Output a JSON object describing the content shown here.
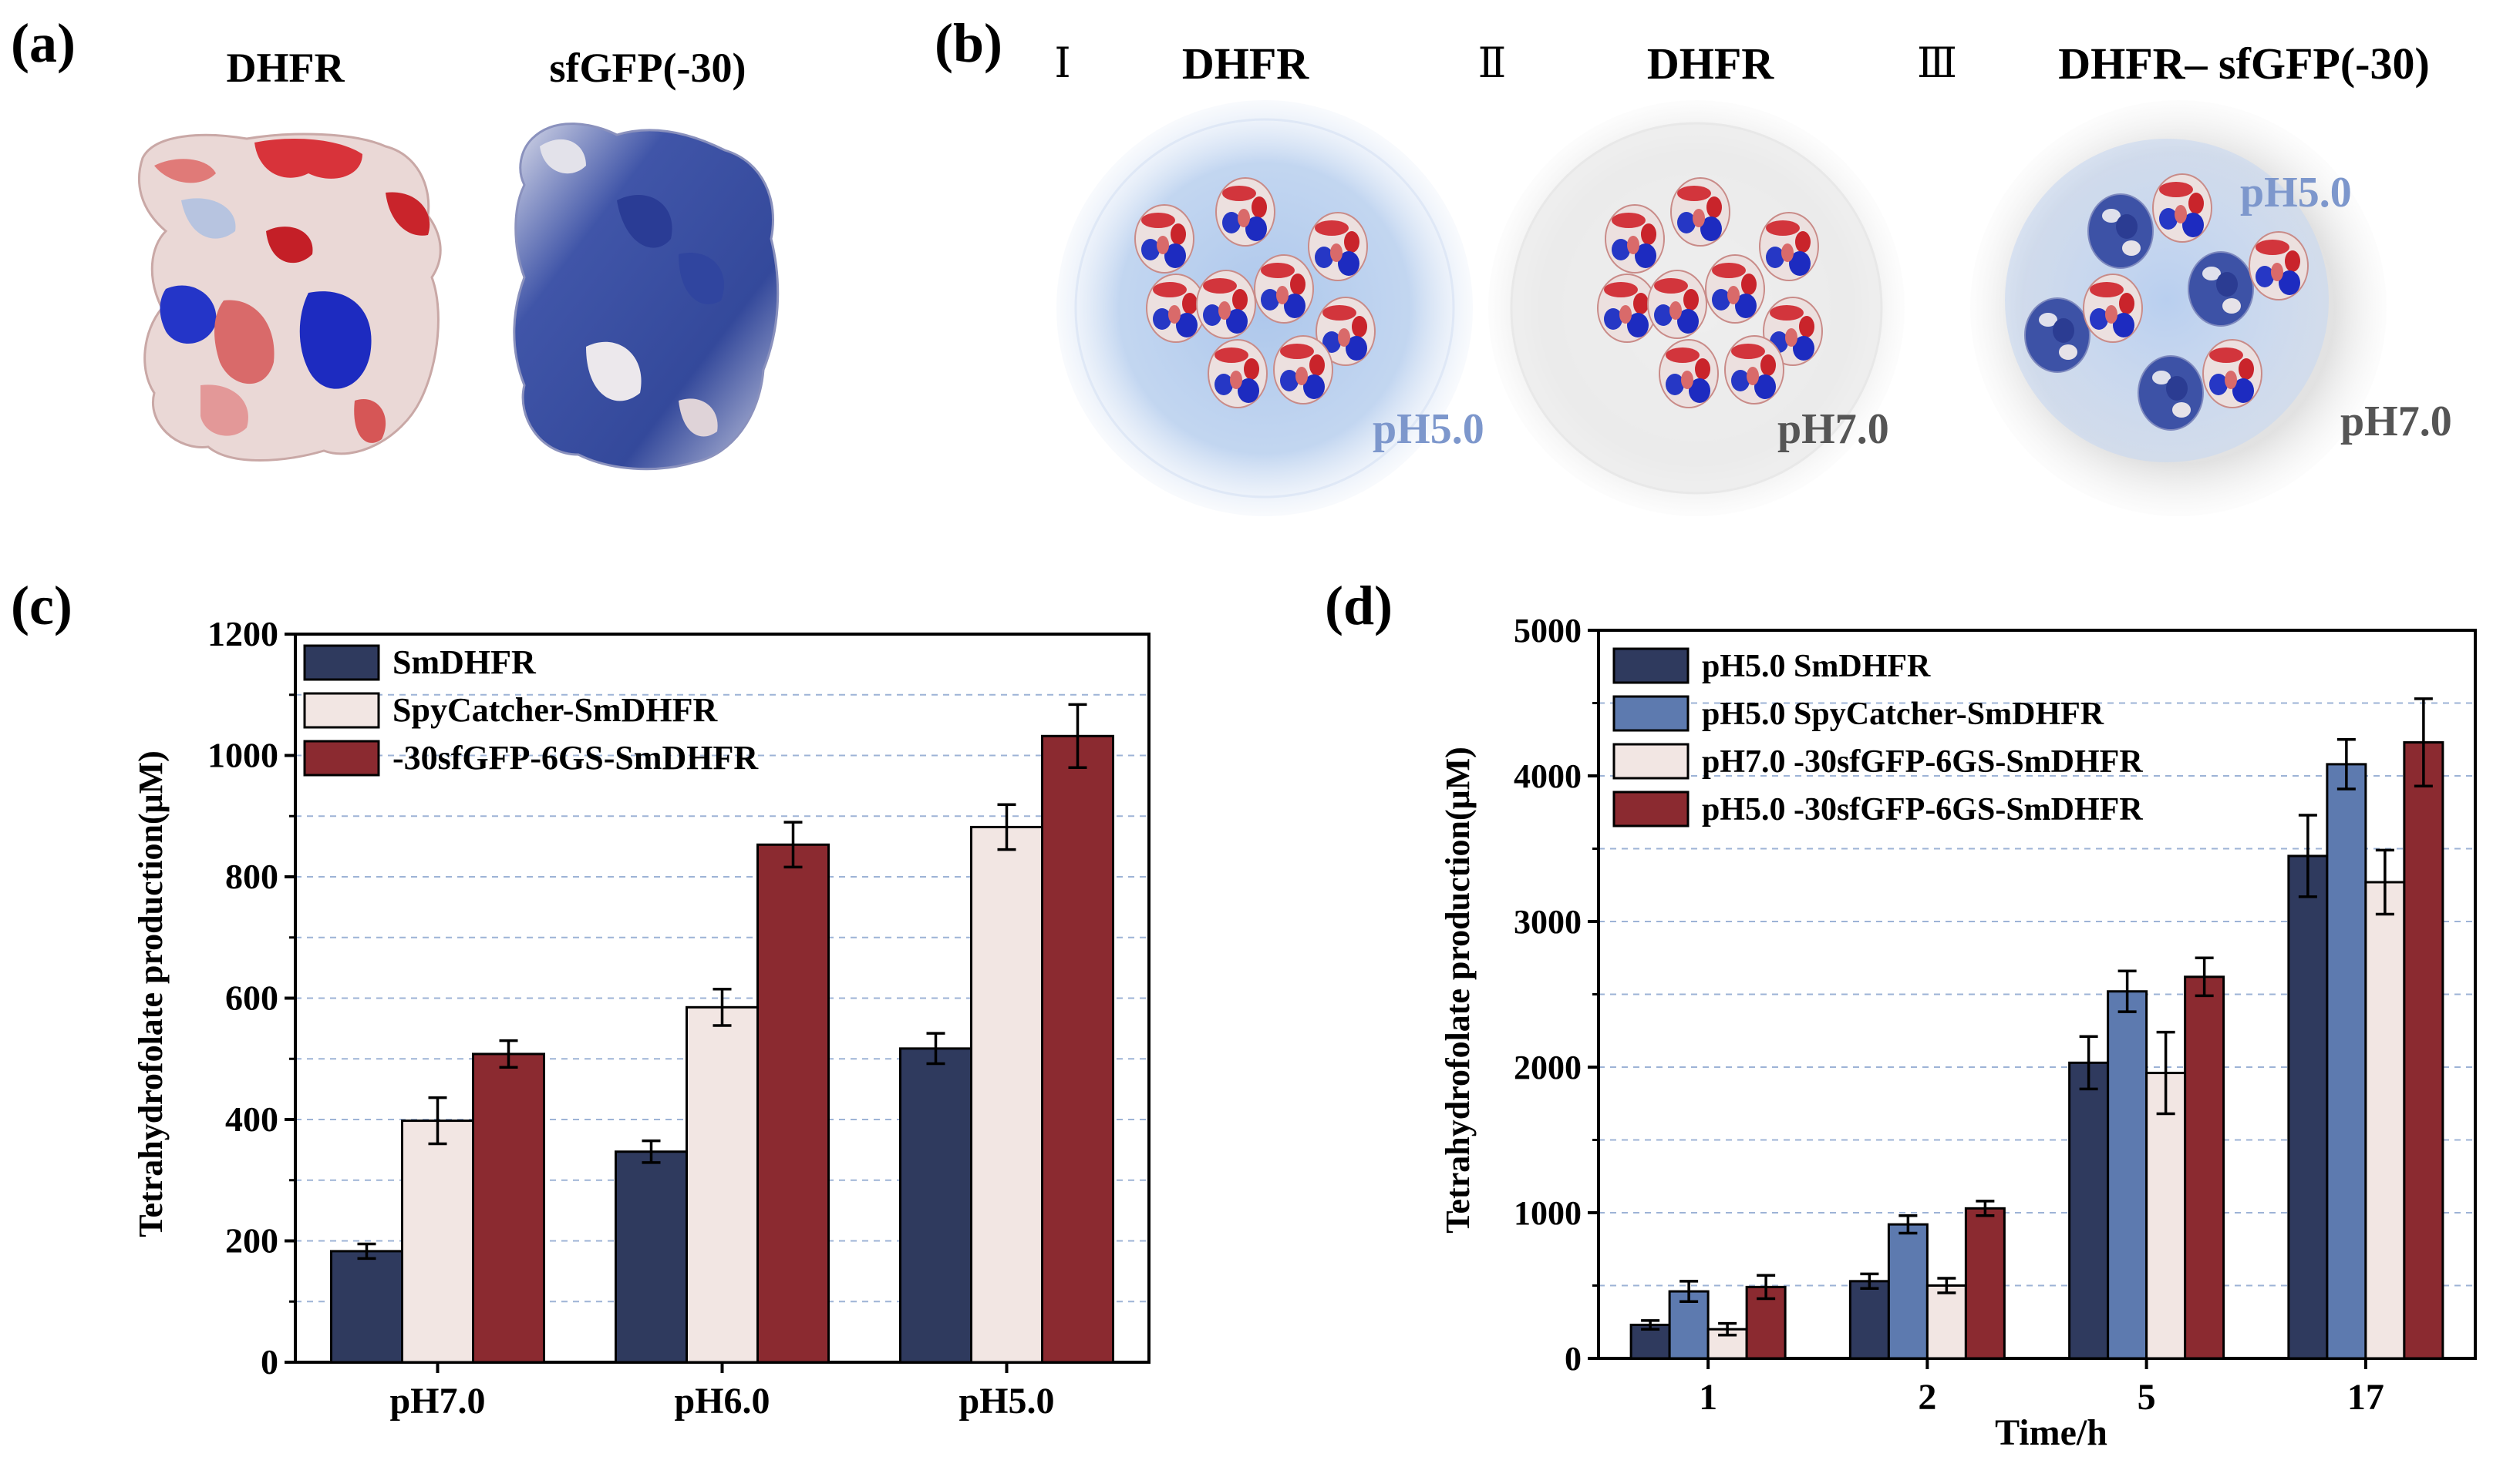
{
  "panel_a": {
    "letter": "(a)",
    "proteins": [
      {
        "label": "DHFR",
        "style": "electrostatic mixed red/white/blue"
      },
      {
        "label": "sfGFP(-30)",
        "style": "electrostatic predominantly blue"
      }
    ]
  },
  "panel_b": {
    "letter": "(b)",
    "groups": [
      {
        "roman": "Ⅰ",
        "title": "DHFR",
        "inner_ph": "pH5.0",
        "outer_ph": "",
        "droplet_color": "#a9c4ea"
      },
      {
        "roman": "Ⅱ",
        "title": "DHFR",
        "inner_ph": "pH7.0",
        "outer_ph": "",
        "droplet_color": "#d9d9d9"
      },
      {
        "roman": "Ⅲ",
        "title": "DHFR– sfGFP(-30)",
        "inner_ph": "pH5.0",
        "outer_ph": "pH7.0",
        "droplet_color": "#d9d9d9"
      }
    ]
  },
  "chart_data": [
    {
      "type": "bar",
      "panel": "(c)",
      "ylabel": "Tetrahydrofolate production(μM)",
      "xlabel": "",
      "ylim": [
        0,
        1200
      ],
      "yticks": [
        0,
        200,
        400,
        600,
        800,
        1000,
        1200
      ],
      "grid": "horizontal dashed",
      "legend_position": "top-left",
      "categories": [
        "pH7.0",
        "pH6.0",
        "pH5.0"
      ],
      "series": [
        {
          "name": "SmDHFR",
          "color": "#2f3a5e",
          "values": [
            183,
            347,
            517
          ],
          "errors": [
            12,
            18,
            25
          ]
        },
        {
          "name": "SpyCatcher-SmDHFR",
          "color": "#f2e6e3",
          "values": [
            398,
            585,
            882
          ],
          "errors": [
            38,
            30,
            37
          ]
        },
        {
          "name": "-30sfGFP-6GS-SmDHFR",
          "color": "#8b2a30",
          "values": [
            508,
            853,
            1032
          ],
          "errors": [
            22,
            37,
            52
          ]
        }
      ]
    },
    {
      "type": "bar",
      "panel": "(d)",
      "ylabel": "Tetrahydrofolate production(μM)",
      "xlabel": "Time/h",
      "ylim": [
        0,
        5000
      ],
      "yticks": [
        0,
        1000,
        2000,
        3000,
        4000,
        5000
      ],
      "grid": "horizontal dashed",
      "legend_position": "top-left",
      "categories": [
        "1",
        "2",
        "5",
        "17"
      ],
      "series": [
        {
          "name": "pH5.0 SmDHFR",
          "color": "#2f3a5e",
          "values": [
            230,
            530,
            2030,
            3450
          ],
          "errors": [
            30,
            50,
            180,
            280
          ]
        },
        {
          "name": "pH5.0 SpyCatcher-SmDHFR",
          "color": "#5d7aaf",
          "values": [
            460,
            920,
            2520,
            4080
          ],
          "errors": [
            70,
            60,
            140,
            170
          ]
        },
        {
          "name": "pH7.0 -30sfGFP-6GS-SmDHFR",
          "color": "#f2e6e3",
          "values": [
            200,
            500,
            1960,
            3270
          ],
          "errors": [
            40,
            50,
            280,
            220
          ]
        },
        {
          "name": "pH5.0 -30sfGFP-6GS-SmDHFR",
          "color": "#8b2a30",
          "values": [
            490,
            1030,
            2620,
            4230
          ],
          "errors": [
            80,
            50,
            130,
            300
          ]
        }
      ]
    }
  ]
}
